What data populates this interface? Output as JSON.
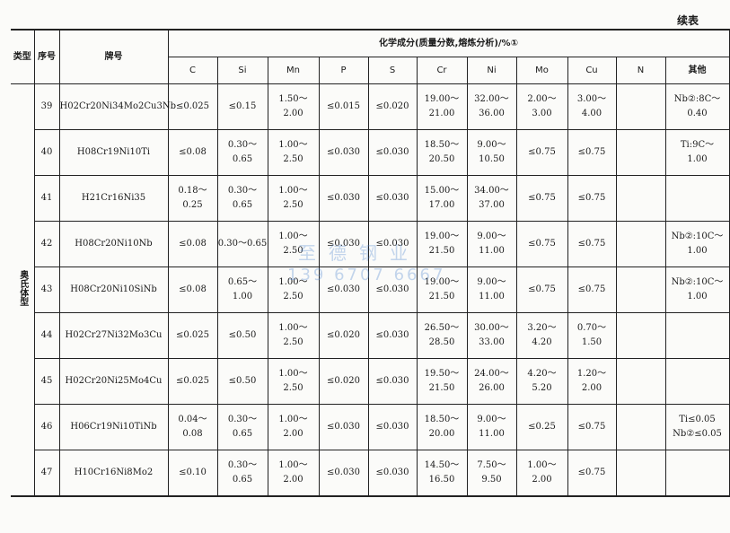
{
  "continued_label": "续表",
  "headers": {
    "category": "类型",
    "no": "序号",
    "grade": "牌号",
    "composition": "化学成分(质量分数,熔炼分析)/%①",
    "elements": [
      "C",
      "Si",
      "Mn",
      "P",
      "S",
      "Cr",
      "Ni",
      "Mo",
      "Cu",
      "N",
      "其他"
    ]
  },
  "category": "奥氏体型",
  "rows": [
    {
      "no": "39",
      "grade": "H02Cr20Ni34Mo2Cu3Nb",
      "cells": [
        "≤0.025",
        "≤0.15",
        "1.50～\n2.00",
        "≤0.015",
        "≤0.020",
        "19.00～\n21.00",
        "32.00～\n36.00",
        "2.00～\n3.00",
        "3.00～\n4.00",
        "",
        "Nb②:8C～\n0.40"
      ]
    },
    {
      "no": "40",
      "grade": "H08Cr19Ni10Ti",
      "cells": [
        "≤0.08",
        "0.30～\n0.65",
        "1.00～\n2.50",
        "≤0.030",
        "≤0.030",
        "18.50～\n20.50",
        "9.00～\n10.50",
        "≤0.75",
        "≤0.75",
        "",
        "Ti:9C～\n1.00"
      ]
    },
    {
      "no": "41",
      "grade": "H21Cr16Ni35",
      "cells": [
        "0.18～\n0.25",
        "0.30～\n0.65",
        "1.00～\n2.50",
        "≤0.030",
        "≤0.030",
        "15.00～\n17.00",
        "34.00～\n37.00",
        "≤0.75",
        "≤0.75",
        "",
        ""
      ]
    },
    {
      "no": "42",
      "grade": "H08Cr20Ni10Nb",
      "cells": [
        "≤0.08",
        "0.30～0.65",
        "1.00～\n2.50",
        "≤0.030",
        "≤0.030",
        "19.00～\n21.50",
        "9.00～\n11.00",
        "≤0.75",
        "≤0.75",
        "",
        "Nb②:10C～\n1.00"
      ]
    },
    {
      "no": "43",
      "grade": "H08Cr20Ni10SiNb",
      "cells": [
        "≤0.08",
        "0.65～\n1.00",
        "1.00～\n2.50",
        "≤0.030",
        "≤0.030",
        "19.00～\n21.50",
        "9.00～\n11.00",
        "≤0.75",
        "≤0.75",
        "",
        "Nb②:10C～\n1.00"
      ]
    },
    {
      "no": "44",
      "grade": "H02Cr27Ni32Mo3Cu",
      "cells": [
        "≤0.025",
        "≤0.50",
        "1.00～\n2.50",
        "≤0.020",
        "≤0.030",
        "26.50～\n28.50",
        "30.00～\n33.00",
        "3.20～\n4.20",
        "0.70～\n1.50",
        "",
        ""
      ]
    },
    {
      "no": "45",
      "grade": "H02Cr20Ni25Mo4Cu",
      "cells": [
        "≤0.025",
        "≤0.50",
        "1.00～\n2.50",
        "≤0.020",
        "≤0.030",
        "19.50～\n21.50",
        "24.00～\n26.00",
        "4.20～\n5.20",
        "1.20～\n2.00",
        "",
        ""
      ]
    },
    {
      "no": "46",
      "grade": "H06Cr19Ni10TiNb",
      "cells": [
        "0.04～\n0.08",
        "0.30～\n0.65",
        "1.00～\n2.00",
        "≤0.030",
        "≤0.030",
        "18.50～\n20.00",
        "9.00～\n11.00",
        "≤0.25",
        "≤0.75",
        "",
        "Ti≤0.05\nNb②≤0.05"
      ]
    },
    {
      "no": "47",
      "grade": "H10Cr16Ni8Mo2",
      "cells": [
        "≤0.10",
        "0.30～\n0.65",
        "1.00～\n2.00",
        "≤0.030",
        "≤0.030",
        "14.50～\n16.50",
        "7.50～\n9.50",
        "1.00～\n2.00",
        "≤0.75",
        "",
        ""
      ]
    }
  ],
  "watermark": {
    "line1": "至德钢业",
    "line2": "139 6707 6667"
  }
}
